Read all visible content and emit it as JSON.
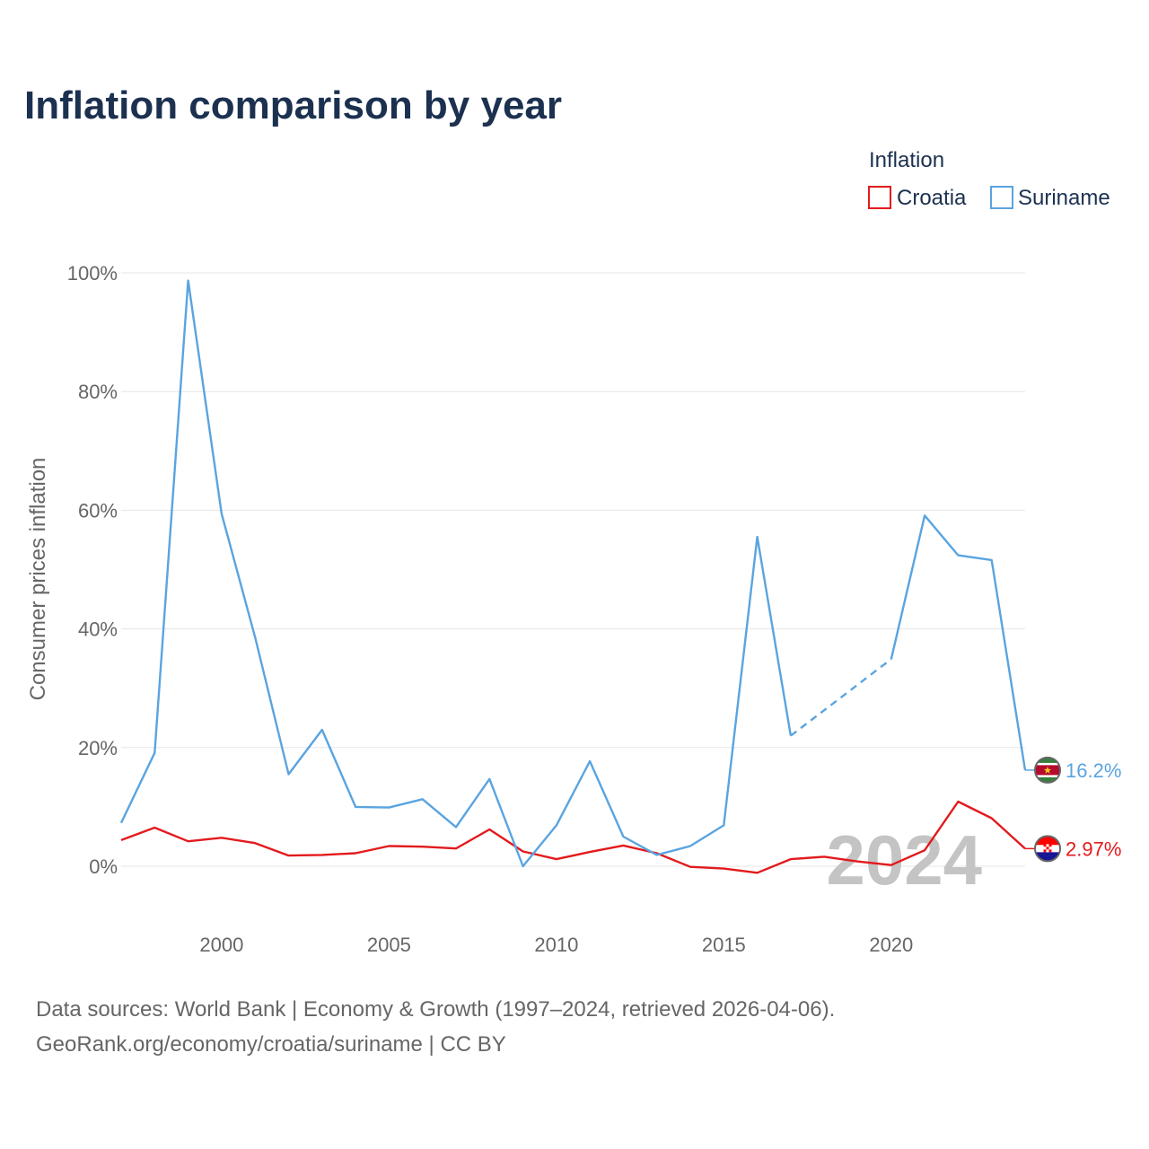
{
  "title": "Inflation comparison by year",
  "legend": {
    "title": "Inflation",
    "items": [
      {
        "name": "Croatia",
        "color": "#e31a1c"
      },
      {
        "name": "Suriname",
        "color": "#5aa4e0"
      }
    ]
  },
  "watermark_year": "2024",
  "footer": {
    "line1": "Data sources: World Bank | Economy & Growth (1997–2024, retrieved 2026-04-06).",
    "line2": "GeoRank.org/economy/croatia/suriname | CC BY"
  },
  "chart_data": {
    "type": "line",
    "title": "Inflation comparison by year",
    "xlabel": "",
    "ylabel": "Consumer prices inflation",
    "xlim": [
      1997,
      2024
    ],
    "ylim": [
      -8,
      100
    ],
    "x_ticks": [
      2000,
      2005,
      2010,
      2015,
      2020
    ],
    "x_tick_labels": [
      "2000",
      "2005",
      "2010",
      "2015",
      "2020"
    ],
    "y_ticks": [
      0,
      20,
      40,
      60,
      80,
      100
    ],
    "y_tick_labels": [
      "0%",
      "20%",
      "40%",
      "60%",
      "80%",
      "100%"
    ],
    "grid": true,
    "legend_position": "top-right",
    "series": [
      {
        "name": "Croatia",
        "color": "#e31a1c",
        "end_label": "2.97%",
        "x": [
          1997,
          1998,
          1999,
          2000,
          2001,
          2002,
          2003,
          2004,
          2005,
          2006,
          2007,
          2008,
          2009,
          2010,
          2011,
          2012,
          2013,
          2014,
          2015,
          2016,
          2017,
          2018,
          2019,
          2020,
          2021,
          2022,
          2023,
          2024
        ],
        "values": [
          4.4,
          6.5,
          4.2,
          4.8,
          3.9,
          1.8,
          1.9,
          2.2,
          3.4,
          3.3,
          3.0,
          6.2,
          2.5,
          1.2,
          2.4,
          3.5,
          2.2,
          -0.1,
          -0.4,
          -1.1,
          1.2,
          1.6,
          0.8,
          0.2,
          2.7,
          10.9,
          8.1,
          2.97
        ],
        "dashed_segments": []
      },
      {
        "name": "Suriname",
        "color": "#5aa4e0",
        "end_label": "16.2%",
        "x": [
          1997,
          1998,
          1999,
          2000,
          2001,
          2002,
          2003,
          2004,
          2005,
          2006,
          2007,
          2008,
          2009,
          2010,
          2011,
          2012,
          2013,
          2014,
          2015,
          2016,
          2017,
          2020,
          2021,
          2022,
          2023,
          2024
        ],
        "values": [
          7.3,
          19.1,
          98.7,
          59.4,
          38.6,
          15.5,
          23.0,
          10.0,
          9.9,
          11.3,
          6.6,
          14.7,
          0.0,
          6.9,
          17.7,
          5.0,
          1.9,
          3.4,
          6.9,
          55.5,
          22.0,
          34.9,
          59.1,
          52.4,
          51.6,
          16.2
        ],
        "dashed_segments": [
          [
            2017,
            2020
          ]
        ]
      }
    ]
  }
}
